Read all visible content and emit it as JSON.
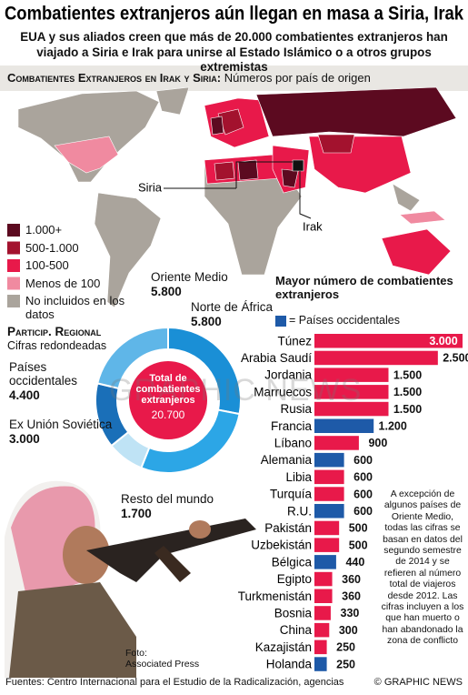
{
  "header": {
    "title": "Combatientes extranjeros aún llegan en masa a Siria, Irak",
    "subtitle": "EUA y sus aliados creen que más de 20.000 combatientes extranjeros han viajado a Siria e Irak para unirse al Estado Islámico o a otros grupos extremistas"
  },
  "map": {
    "title": "Combatientes Extranjeros en Irak y Siria:",
    "subtitle": "Números por país de origen",
    "labels": [
      "Siria",
      "Irak"
    ],
    "legend": [
      {
        "label": "1.000+",
        "color": "#5c0a20"
      },
      {
        "label": "500-1.000",
        "color": "#a3122e"
      },
      {
        "label": "100-500",
        "color": "#e8194a"
      },
      {
        "label": "Menos de 100",
        "color": "#f08aa0"
      },
      {
        "label": "No incluidos en los datos",
        "color": "#aaa49c"
      }
    ]
  },
  "chart_data": [
    {
      "type": "donut",
      "title": "Particip. Regional",
      "subtitle": "Cifras redondeadas",
      "center_label": "Total de combatientes extranjeros",
      "total": {
        "value": 20700,
        "label": "20.700"
      },
      "categories": [
        "Oriente Medio",
        "Norte de África",
        "Resto del mundo",
        "Ex Unión Soviética",
        "Países occidentales"
      ],
      "values": [
        5800,
        5800,
        1700,
        3000,
        4400
      ],
      "value_labels": [
        "5.800",
        "5.800",
        "1.700",
        "3.000",
        "4.400"
      ],
      "colors": [
        "#1a8fd6",
        "#2ca6e6",
        "#bfe3f5",
        "#1a6fb8",
        "#5fb6e8"
      ]
    },
    {
      "type": "bar",
      "title": "Mayor número de combatientes extranjeros",
      "legend": {
        "label": "= Países occidentales",
        "color": "#1e5aa8"
      },
      "categories": [
        "Túnez",
        "Arabia Saudí",
        "Jordania",
        "Marruecos",
        "Rusia",
        "Francia",
        "Líbano",
        "Alemania",
        "Libia",
        "Turquía",
        "R.U.",
        "Pakistán",
        "Uzbekistán",
        "Bélgica",
        "Egipto",
        "Turkmenistán",
        "Bosnia",
        "China",
        "Kazajistán",
        "Holanda"
      ],
      "values": [
        3000,
        2500,
        1500,
        1500,
        1500,
        1200,
        900,
        600,
        600,
        600,
        600,
        500,
        500,
        440,
        360,
        360,
        330,
        300,
        250,
        250
      ],
      "value_labels": [
        "3.000",
        "2.500",
        "1.500",
        "1.500",
        "1.500",
        "1.200",
        "900",
        "600",
        "600",
        "600",
        "600",
        "500",
        "500",
        "440",
        "360",
        "360",
        "330",
        "300",
        "250",
        "250"
      ],
      "colors": [
        "#e8194a",
        "#e8194a",
        "#e8194a",
        "#e8194a",
        "#e8194a",
        "#1e5aa8",
        "#e8194a",
        "#1e5aa8",
        "#e8194a",
        "#e8194a",
        "#1e5aa8",
        "#e8194a",
        "#e8194a",
        "#1e5aa8",
        "#e8194a",
        "#e8194a",
        "#e8194a",
        "#e8194a",
        "#e8194a",
        "#1e5aa8"
      ],
      "xlim": [
        0,
        3000
      ]
    }
  ],
  "note": "A excepción de algunos países de Oriente Medio, todas las cifras se basan en datos del segundo semestre de 2014 y se refieren al número total de viajeros desde 2012. Las cifras incluyen a los que han muerto o han abandonado la zona de conflicto",
  "photo_credit": [
    "Foto:",
    "Associated Press"
  ],
  "watermark": "GRAPHIC NEWS",
  "footer": {
    "source": "Fuentes: Centro Internacional para el Estudio de la Radicalización, agencias",
    "credit": "© GRAPHIC NEWS"
  }
}
